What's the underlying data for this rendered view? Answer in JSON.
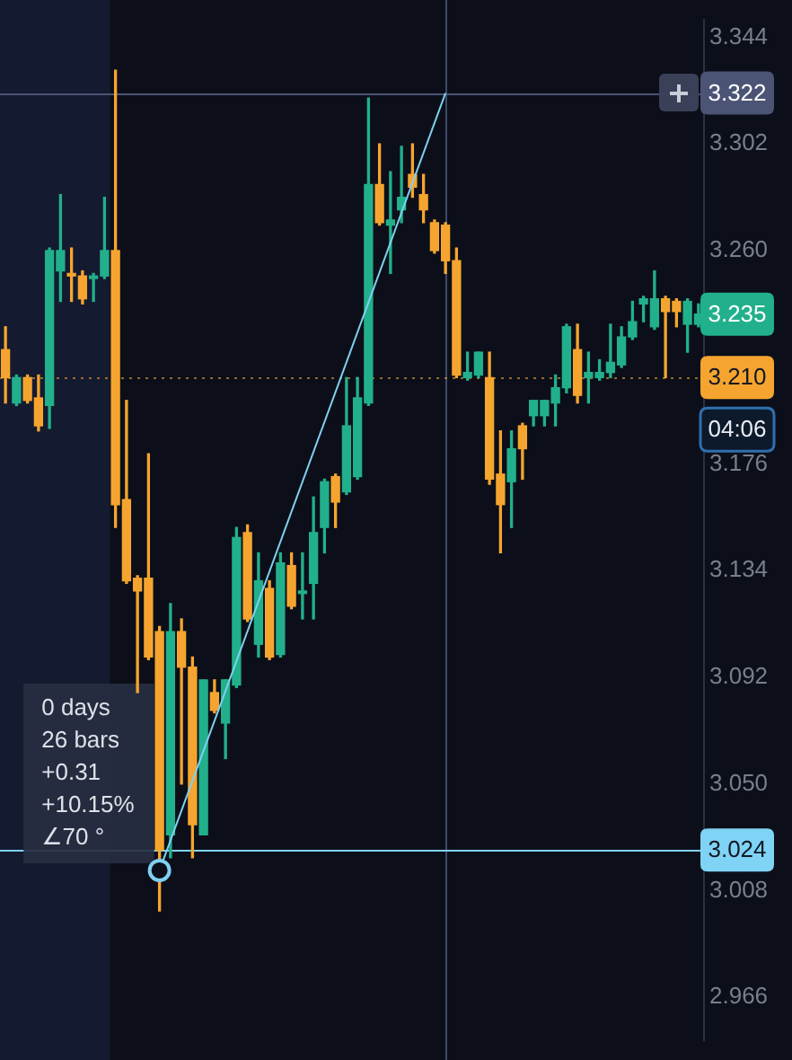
{
  "chart_data": {
    "type": "candlestick",
    "categories": [
      null,
      null,
      null,
      null,
      null,
      null,
      null,
      null,
      null,
      null,
      null,
      null,
      null,
      null,
      null,
      null,
      null,
      null,
      null,
      null,
      null,
      null,
      null,
      null,
      null,
      null,
      null,
      null,
      null,
      null,
      null,
      null,
      null,
      null,
      null,
      null,
      null,
      null,
      null,
      null,
      null,
      null,
      null,
      null,
      null,
      null,
      null,
      null,
      null,
      null,
      null,
      null,
      null,
      null,
      null,
      null,
      null,
      null,
      null,
      null,
      null,
      null,
      null,
      null
    ],
    "ohlc": [
      [
        3.221,
        3.23,
        3.2,
        3.21
      ],
      [
        3.2,
        3.211,
        3.199,
        3.21
      ],
      [
        3.21,
        3.211,
        3.2,
        3.201
      ],
      [
        3.202,
        3.211,
        3.189,
        3.191
      ],
      [
        3.199,
        3.261,
        3.19,
        3.26
      ],
      [
        3.252,
        3.282,
        3.24,
        3.26
      ],
      [
        3.251,
        3.261,
        3.24,
        3.25
      ],
      [
        3.25,
        3.252,
        3.239,
        3.241
      ],
      [
        3.249,
        3.251,
        3.24,
        3.25
      ],
      [
        3.25,
        3.281,
        3.249,
        3.26
      ],
      [
        3.26,
        3.331,
        3.151,
        3.16
      ],
      [
        3.162,
        3.201,
        3.129,
        3.13
      ],
      [
        3.131,
        3.132,
        3.086,
        3.126
      ],
      [
        3.131,
        3.18,
        3.099,
        3.1
      ],
      [
        3.11,
        3.112,
        3.0,
        3.024
      ],
      [
        3.03,
        3.121,
        3.021,
        3.11
      ],
      [
        3.11,
        3.115,
        3.05,
        3.096
      ],
      [
        3.096,
        3.1,
        3.021,
        3.034
      ],
      [
        3.03,
        3.091,
        3.03,
        3.091
      ],
      [
        3.086,
        3.091,
        3.078,
        3.079
      ],
      [
        3.074,
        3.091,
        3.06,
        3.091
      ],
      [
        3.089,
        3.151,
        3.088,
        3.147
      ],
      [
        3.149,
        3.152,
        3.114,
        3.115
      ],
      [
        3.105,
        3.141,
        3.1,
        3.13
      ],
      [
        3.127,
        3.13,
        3.099,
        3.1
      ],
      [
        3.101,
        3.141,
        3.1,
        3.137
      ],
      [
        3.136,
        3.141,
        3.119,
        3.12
      ],
      [
        3.125,
        3.141,
        3.115,
        3.126
      ],
      [
        3.129,
        3.163,
        3.115,
        3.149
      ],
      [
        3.151,
        3.17,
        3.141,
        3.169
      ],
      [
        3.171,
        3.172,
        3.151,
        3.161
      ],
      [
        3.165,
        3.21,
        3.164,
        3.191
      ],
      [
        3.171,
        3.21,
        3.17,
        3.202
      ],
      [
        3.2,
        3.32,
        3.199,
        3.286
      ],
      [
        3.286,
        3.302,
        3.27,
        3.271
      ],
      [
        3.27,
        3.291,
        3.251,
        3.272
      ],
      [
        3.276,
        3.301,
        3.271,
        3.281
      ],
      [
        3.29,
        3.302,
        3.281,
        3.285
      ],
      [
        3.282,
        3.29,
        3.271,
        3.276
      ],
      [
        3.271,
        3.272,
        3.259,
        3.26
      ],
      [
        3.27,
        3.271,
        3.251,
        3.256
      ],
      [
        3.256,
        3.261,
        3.21,
        3.211
      ],
      [
        3.21,
        3.22,
        3.209,
        3.212
      ],
      [
        3.211,
        3.22,
        3.21,
        3.22
      ],
      [
        3.21,
        3.22,
        3.168,
        3.17
      ],
      [
        3.172,
        3.189,
        3.141,
        3.16
      ],
      [
        3.169,
        3.189,
        3.151,
        3.182
      ],
      [
        3.191,
        3.192,
        3.17,
        3.182
      ],
      [
        3.195,
        3.201,
        3.191,
        3.201
      ],
      [
        3.195,
        3.201,
        3.191,
        3.201
      ],
      [
        3.2,
        3.211,
        3.191,
        3.206
      ],
      [
        3.206,
        3.231,
        3.204,
        3.23
      ],
      [
        3.221,
        3.231,
        3.2,
        3.203
      ],
      [
        3.21,
        3.22,
        3.2,
        3.212
      ],
      [
        3.21,
        3.217,
        3.209,
        3.212
      ],
      [
        3.212,
        3.231,
        3.21,
        3.216
      ],
      [
        3.215,
        3.23,
        3.214,
        3.226
      ],
      [
        3.226,
        3.24,
        3.225,
        3.232
      ],
      [
        3.239,
        3.242,
        3.232,
        3.241
      ],
      [
        3.23,
        3.252,
        3.229,
        3.241
      ],
      [
        3.241,
        3.242,
        3.21,
        3.236
      ],
      [
        3.24,
        3.241,
        3.23,
        3.236
      ],
      [
        3.231,
        3.241,
        3.22,
        3.24
      ],
      [
        3.231,
        3.239,
        3.23,
        3.235
      ]
    ],
    "colors": [
      "#f5a52f",
      "#22b08c",
      "#f5a52f",
      "#f5a52f",
      "#22b08c",
      "#22b08c",
      "#f5a52f",
      "#f5a52f",
      "#22b08c",
      "#22b08c",
      "#f5a52f",
      "#f5a52f",
      "#f5a52f",
      "#f5a52f",
      "#f5a52f",
      "#22b08c",
      "#f5a52f",
      "#f5a52f",
      "#22b08c",
      "#f5a52f",
      "#22b08c",
      "#22b08c",
      "#f5a52f",
      "#22b08c",
      "#f5a52f",
      "#22b08c",
      "#f5a52f",
      "#22b08c",
      "#22b08c",
      "#22b08c",
      "#f5a52f",
      "#22b08c",
      "#22b08c",
      "#22b08c",
      "#f5a52f",
      "#22b08c",
      "#22b08c",
      "#f5a52f",
      "#f5a52f",
      "#f5a52f",
      "#f5a52f",
      "#f5a52f",
      "#22b08c",
      "#22b08c",
      "#f5a52f",
      "#f5a52f",
      "#22b08c",
      "#f5a52f",
      "#22b08c",
      "#22b08c",
      "#22b08c",
      "#22b08c",
      "#f5a52f",
      "#22b08c",
      "#22b08c",
      "#22b08c",
      "#22b08c",
      "#22b08c",
      "#22b08c",
      "#22b08c",
      "#f5a52f",
      "#f5a52f",
      "#22b08c",
      "#22b08c"
    ],
    "series": [
      {
        "type": "line",
        "color": "#7fd0f2",
        "marker": "circle",
        "values": [
          null,
          null,
          null,
          null,
          null,
          null,
          null,
          null,
          null,
          null,
          null,
          null,
          null,
          null,
          3.016,
          null,
          null,
          null,
          null,
          null,
          null,
          null,
          null,
          null,
          null,
          null,
          null,
          null,
          null,
          null,
          null,
          null,
          null,
          null,
          null,
          null,
          null,
          null,
          null,
          null,
          3.322,
          null,
          null,
          null,
          null,
          null,
          null,
          null,
          null,
          null,
          null,
          null,
          null,
          null,
          null,
          null,
          null,
          null,
          null,
          null,
          null,
          null,
          null,
          null
        ]
      }
    ],
    "ylim": [
      2.949,
      3.351
    ],
    "yticks": [
      2.966,
      3.008,
      {
        "value": 3.05,
        "label": "3.050"
      },
      3.092,
      3.134,
      3.176,
      {
        "value": 3.26,
        "label": "3.260"
      },
      3.302,
      3.344
    ],
    "ref_lines": [
      {
        "axis": "y",
        "value": 3.322,
        "label": "3.322",
        "color": "#4b5475"
      },
      {
        "axis": "y",
        "value": 3.21,
        "label": "3.210",
        "color": "#f5a52f",
        "line_style": "dotted"
      },
      {
        "axis": "y",
        "value": 3.024,
        "label": "3.024",
        "color": "#7fd3f5"
      }
    ],
    "annotations": [
      "0 days",
      "26 bars",
      "+0.31",
      "+10.15%",
      "∠70 °",
      {
        "text": "3.235",
        "y": 3.235
      },
      {
        "text": "04:06",
        "y": 3.21
      }
    ]
  }
}
